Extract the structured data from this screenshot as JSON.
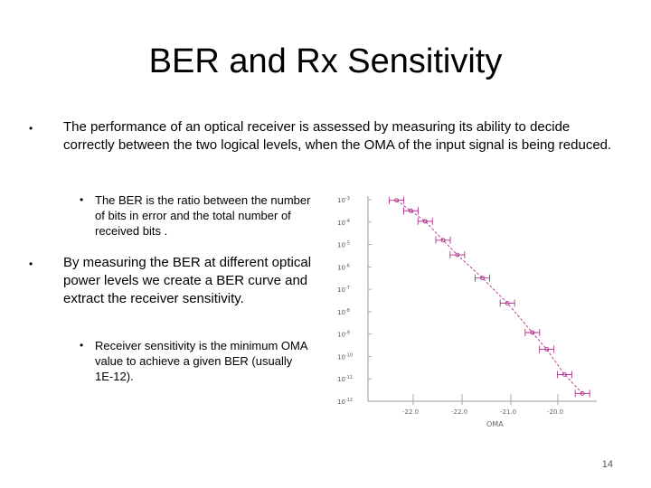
{
  "slide": {
    "title": "BER and Rx Sensitivity",
    "page_number": "14"
  },
  "bullets": {
    "b1": "The performance of an optical receiver is assessed by measuring its ability to decide correctly between the two logical levels, when the OMA of the input signal is being reduced.",
    "b1_sub": "The BER is the ratio between the number of bits in error and the total number of received bits .",
    "b2": "By measuring the BER at different optical power levels we create a BER curve and extract the receiver sensitivity.",
    "b2_sub": "Receiver sensitivity  is the minimum OMA value to achieve a given BER (usually 1E-12)."
  },
  "chart_data": {
    "type": "scatter",
    "xlabel": "OMA",
    "ylabel": "",
    "x_ticks": [
      "-22.0",
      "-22.0",
      "-21.0",
      "-20.0"
    ],
    "y_ticks": [
      "10-3",
      "10-4",
      "10-5",
      "10-6",
      "10-7",
      "10-8",
      "10-9",
      "10-10",
      "10-11",
      "10-12"
    ],
    "series": [
      {
        "points": [
          {
            "x": -22.6,
            "y": -3.0
          },
          {
            "x": -22.4,
            "y": -3.5
          },
          {
            "x": -22.2,
            "y": -4.0
          },
          {
            "x": -21.95,
            "y": -4.9
          },
          {
            "x": -21.75,
            "y": -5.6
          },
          {
            "x": -21.4,
            "y": -6.7
          },
          {
            "x": -21.05,
            "y": -7.9
          },
          {
            "x": -20.7,
            "y": -9.3
          },
          {
            "x": -20.5,
            "y": -10.1
          },
          {
            "x": -20.25,
            "y": -11.3
          },
          {
            "x": -20.0,
            "y": -12.2
          }
        ]
      }
    ],
    "colors": {
      "series": "#b0308a"
    }
  }
}
